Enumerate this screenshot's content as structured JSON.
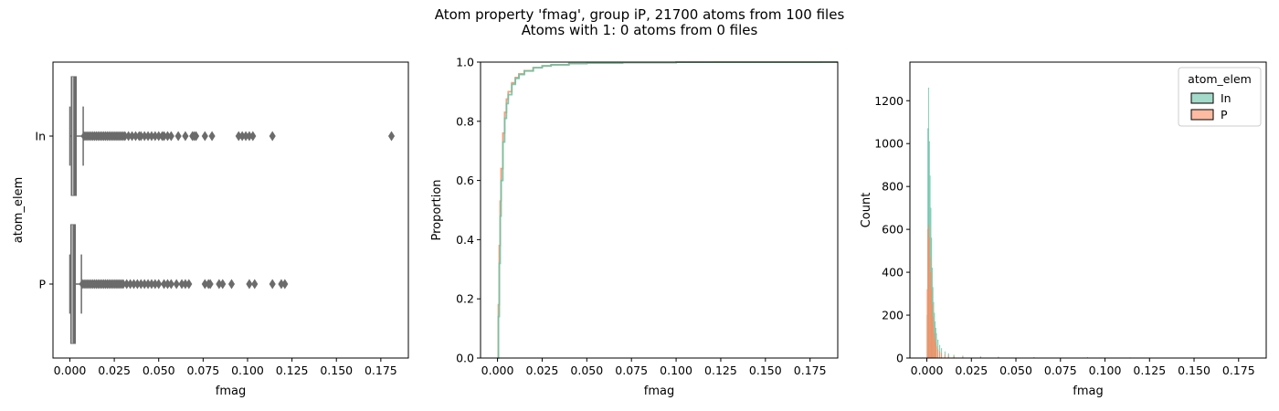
{
  "figure": {
    "title_line1": "Atom property 'fmag', group iP, 21700 atoms from 100 files",
    "title_line2": "Atoms with 1: 0 atoms from 0 files"
  },
  "colors": {
    "In": "#66c2a5",
    "P": "#fc8d62",
    "box": "#6b6b6b"
  },
  "chart_data": [
    {
      "type": "box",
      "orientation": "horizontal",
      "xlabel": "fmag",
      "ylabel": "atom_elem",
      "xlim": [
        -0.0095,
        0.1905
      ],
      "xticks": [
        "0.000",
        "0.025",
        "0.050",
        "0.075",
        "0.100",
        "0.125",
        "0.150",
        "0.175"
      ],
      "xtick_values": [
        0,
        0.025,
        0.05,
        0.075,
        0.1,
        0.125,
        0.15,
        0.175
      ],
      "categories": [
        "In",
        "P"
      ],
      "boxes": [
        {
          "name": "In",
          "q1": 0.0009,
          "median": 0.0017,
          "q3": 0.0035,
          "whisker_low": 0.0,
          "whisker_high": 0.0075,
          "outliers": [
            0.008,
            0.009,
            0.01,
            0.011,
            0.012,
            0.013,
            0.014,
            0.015,
            0.016,
            0.017,
            0.018,
            0.019,
            0.02,
            0.021,
            0.022,
            0.023,
            0.024,
            0.025,
            0.026,
            0.027,
            0.028,
            0.029,
            0.03,
            0.031,
            0.033,
            0.035,
            0.037,
            0.039,
            0.04,
            0.042,
            0.044,
            0.046,
            0.048,
            0.05,
            0.052,
            0.053,
            0.055,
            0.057,
            0.061,
            0.065,
            0.069,
            0.07,
            0.071,
            0.076,
            0.08,
            0.095,
            0.097,
            0.099,
            0.101,
            0.103,
            0.114,
            0.181
          ]
        },
        {
          "name": "P",
          "q1": 0.0006,
          "median": 0.0013,
          "q3": 0.003,
          "whisker_low": 0.0,
          "whisker_high": 0.0065,
          "outliers": [
            0.007,
            0.008,
            0.009,
            0.01,
            0.011,
            0.012,
            0.013,
            0.014,
            0.015,
            0.016,
            0.017,
            0.018,
            0.019,
            0.02,
            0.021,
            0.022,
            0.023,
            0.024,
            0.025,
            0.026,
            0.027,
            0.028,
            0.029,
            0.03,
            0.032,
            0.034,
            0.036,
            0.038,
            0.04,
            0.042,
            0.044,
            0.046,
            0.048,
            0.05,
            0.053,
            0.055,
            0.057,
            0.06,
            0.063,
            0.065,
            0.067,
            0.076,
            0.078,
            0.079,
            0.084,
            0.086,
            0.091,
            0.101,
            0.104,
            0.114,
            0.119,
            0.121
          ]
        }
      ]
    },
    {
      "type": "line",
      "subtype": "ecdf",
      "xlabel": "fmag",
      "ylabel": "Proportion",
      "xlim": [
        -0.0095,
        0.1905
      ],
      "ylim": [
        0,
        1.0
      ],
      "xticks": [
        "0.000",
        "0.025",
        "0.050",
        "0.075",
        "0.100",
        "0.125",
        "0.150",
        "0.175"
      ],
      "xtick_values": [
        0,
        0.025,
        0.05,
        0.075,
        0.1,
        0.125,
        0.15,
        0.175
      ],
      "yticks": [
        "0.0",
        "0.2",
        "0.4",
        "0.6",
        "0.8",
        "1.0"
      ],
      "ytick_values": [
        0,
        0.2,
        0.4,
        0.6,
        0.8,
        1.0
      ],
      "series": [
        {
          "name": "In",
          "x": [
            0,
            0.0005,
            0.001,
            0.0015,
            0.002,
            0.003,
            0.004,
            0.005,
            0.006,
            0.008,
            0.01,
            0.012,
            0.015,
            0.02,
            0.025,
            0.03,
            0.04,
            0.05,
            0.07,
            0.1,
            0.181
          ],
          "y": [
            0,
            0.14,
            0.32,
            0.48,
            0.6,
            0.73,
            0.81,
            0.86,
            0.89,
            0.925,
            0.945,
            0.958,
            0.97,
            0.981,
            0.987,
            0.991,
            0.995,
            0.997,
            0.9985,
            0.9995,
            1.0
          ]
        },
        {
          "name": "P",
          "x": [
            0,
            0.0005,
            0.001,
            0.0015,
            0.002,
            0.003,
            0.004,
            0.005,
            0.006,
            0.008,
            0.01,
            0.012,
            0.015,
            0.02,
            0.025,
            0.03,
            0.04,
            0.05,
            0.07,
            0.1,
            0.121
          ],
          "y": [
            0,
            0.18,
            0.38,
            0.53,
            0.64,
            0.76,
            0.83,
            0.875,
            0.9,
            0.93,
            0.948,
            0.96,
            0.971,
            0.981,
            0.987,
            0.991,
            0.995,
            0.997,
            0.9985,
            0.9995,
            1.0
          ]
        }
      ]
    },
    {
      "type": "bar",
      "subtype": "histogram",
      "xlabel": "fmag",
      "ylabel": "Count",
      "xlim": [
        -0.0095,
        0.1905
      ],
      "ylim": [
        0,
        1380
      ],
      "xticks": [
        "0.000",
        "0.025",
        "0.050",
        "0.075",
        "0.100",
        "0.125",
        "0.150",
        "0.175"
      ],
      "xtick_values": [
        0,
        0.025,
        0.05,
        0.075,
        0.1,
        0.125,
        0.15,
        0.175
      ],
      "yticks": [
        "0",
        "200",
        "400",
        "600",
        "800",
        "1000",
        "1200"
      ],
      "ytick_values": [
        0,
        200,
        400,
        600,
        800,
        1000,
        1200
      ],
      "legend_title": "atom_elem",
      "legend_placement": "top-right",
      "bin_width": 0.0004,
      "series": [
        {
          "name": "In",
          "bin_starts": [
            0.0,
            0.0004,
            0.0008,
            0.0012,
            0.0016,
            0.002,
            0.0024,
            0.0028,
            0.0032,
            0.0036,
            0.004,
            0.0044,
            0.0048,
            0.0052,
            0.006,
            0.007,
            0.008,
            0.01,
            0.012,
            0.015,
            0.02,
            0.03,
            0.04,
            0.06,
            0.09,
            0.114,
            0.181
          ],
          "counts": [
            200,
            1070,
            1260,
            1010,
            850,
            700,
            560,
            420,
            330,
            260,
            210,
            170,
            140,
            115,
            85,
            60,
            45,
            30,
            20,
            14,
            10,
            7,
            5,
            4,
            3,
            2,
            1
          ]
        },
        {
          "name": "P",
          "bin_starts": [
            0.0,
            0.0004,
            0.0008,
            0.0012,
            0.0016,
            0.002,
            0.0024,
            0.0028,
            0.0032,
            0.0036,
            0.004,
            0.0044,
            0.0048,
            0.0052,
            0.006,
            0.007,
            0.008,
            0.01,
            0.012,
            0.015,
            0.02,
            0.03,
            0.04,
            0.06,
            0.09,
            0.114,
            0.121
          ],
          "counts": [
            320,
            600,
            620,
            560,
            470,
            400,
            320,
            250,
            190,
            150,
            115,
            90,
            70,
            55,
            40,
            30,
            22,
            15,
            10,
            7,
            5,
            4,
            3,
            2,
            1,
            1,
            1
          ]
        }
      ]
    }
  ]
}
